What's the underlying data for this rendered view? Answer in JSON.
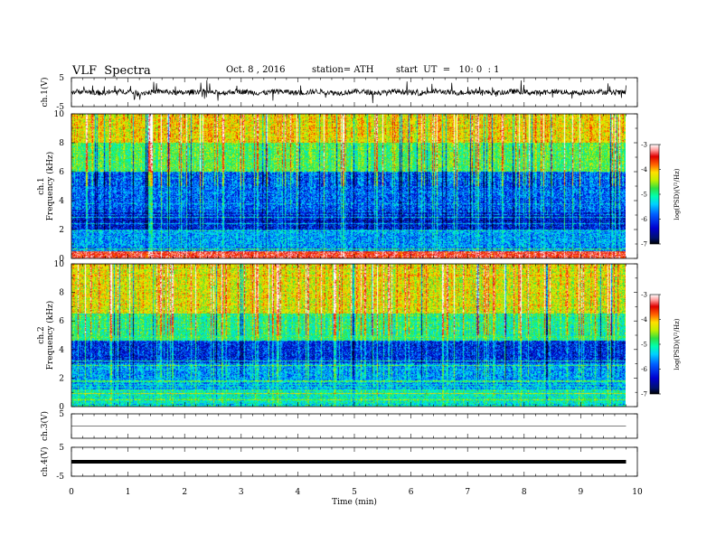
{
  "header": {
    "title": "VLF  Spectra",
    "date": "Oct. 8 , 2016",
    "station": "station= ATH",
    "start": "start  UT  =   10: 0  : 1"
  },
  "colors": {
    "colormap": [
      "#000000",
      "#001070",
      "#0000d0",
      "#0060ff",
      "#00d0ff",
      "#00ffb0",
      "#30e040",
      "#c0f000",
      "#ffe000",
      "#ff6000",
      "#e00000",
      "#ff9090",
      "#ffffff"
    ],
    "trace": "#000000",
    "axis": "#000000"
  },
  "chart_data": [
    {
      "type": "line",
      "name": "ch1-waveform",
      "ylabel": "ch.1(V)",
      "ylim": [
        -5,
        5
      ],
      "yticks": [
        "5",
        "-5"
      ],
      "xlim": [
        0,
        10
      ],
      "x_end": 9.8,
      "baseline": 0,
      "amplitude_typical": 0.9,
      "amplitude_spikes": 3.5
    },
    {
      "type": "heatmap",
      "name": "ch1-spectrogram",
      "ylabel": "ch.1\nFrequency  (kHz)",
      "ylim": [
        0,
        10
      ],
      "yticks": [
        "0",
        "2",
        "4",
        "6",
        "8",
        "10"
      ],
      "xlim": [
        0,
        10
      ],
      "x_end": 9.8,
      "colorbar": {
        "label": "log(PSD)(V²/Hz)",
        "range": [
          -7,
          -3
        ],
        "ticks": [
          "-3",
          "-4",
          "-5",
          "-6",
          "-7"
        ]
      },
      "band_profile_khz": [
        {
          "from": 0,
          "to": 0.5,
          "level": -3.6
        },
        {
          "from": 0.5,
          "to": 2,
          "level": -5.8
        },
        {
          "from": 2,
          "to": 3.2,
          "level": -6.3
        },
        {
          "from": 3.2,
          "to": 6,
          "level": -6.0
        },
        {
          "from": 6,
          "to": 8,
          "level": -5.0
        },
        {
          "from": 8,
          "to": 10,
          "level": -4.4
        }
      ]
    },
    {
      "type": "heatmap",
      "name": "ch2-spectrogram",
      "ylabel": "ch.2\nFrequency  (kHz)",
      "ylim": [
        0,
        10
      ],
      "yticks": [
        "0",
        "2",
        "4",
        "6",
        "8",
        "10"
      ],
      "xlim": [
        0,
        10
      ],
      "x_end": 9.8,
      "colorbar": {
        "label": "log(PSD)(V²/Hz)",
        "range": [
          -7,
          -3
        ],
        "ticks": [
          "-3",
          "-4",
          "-5",
          "-6",
          "-7"
        ]
      },
      "band_profile_khz": [
        {
          "from": 0,
          "to": 1.2,
          "level": -5.4
        },
        {
          "from": 1.2,
          "to": 3,
          "level": -5.8
        },
        {
          "from": 3,
          "to": 4.6,
          "level": -6.2
        },
        {
          "from": 4.6,
          "to": 6.5,
          "level": -5.2
        },
        {
          "from": 6.5,
          "to": 10,
          "level": -4.5
        }
      ]
    },
    {
      "type": "line",
      "name": "ch3-waveform",
      "ylabel": "ch.3(V)",
      "ylim": [
        -5,
        5
      ],
      "yticks": [
        "5"
      ],
      "xlim": [
        0,
        10
      ],
      "x_end": 9.8,
      "baseline": 0
    },
    {
      "type": "line",
      "name": "ch4-waveform",
      "ylabel": "ch.4(V)",
      "ylim": [
        -5,
        5
      ],
      "yticks": [
        "5",
        "-5"
      ],
      "xlim": [
        0,
        10
      ],
      "x_end": 9.8,
      "baseline": 0
    }
  ],
  "x_axis": {
    "label": "Time  (min)",
    "ticks": [
      "0",
      "1",
      "2",
      "3",
      "4",
      "5",
      "6",
      "7",
      "8",
      "9",
      "10"
    ]
  }
}
